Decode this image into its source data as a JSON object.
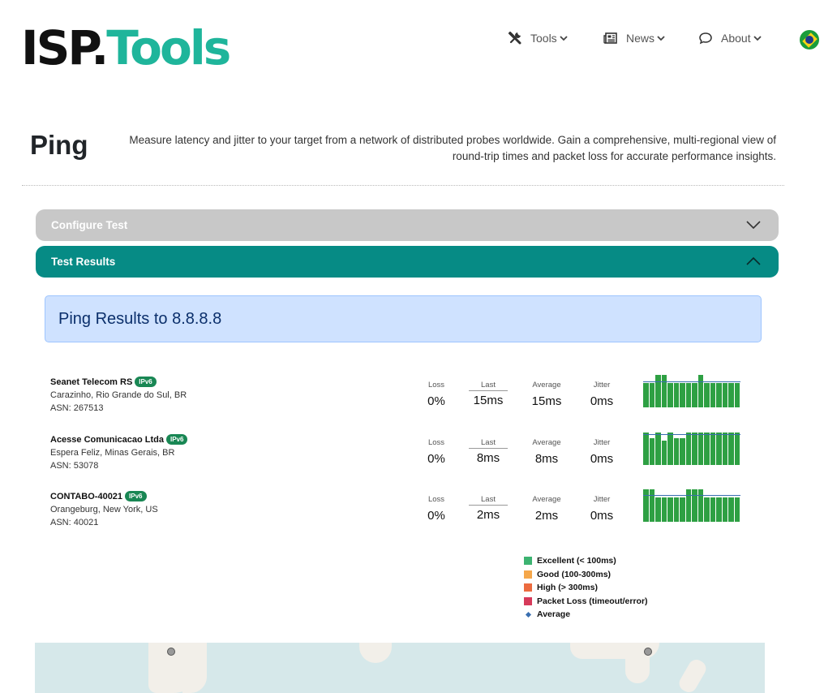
{
  "header": {
    "logo_isp": "ISP",
    "logo_dot": ".",
    "logo_tools": "Tools",
    "nav": [
      {
        "label": "Tools",
        "icon": "tools-icon"
      },
      {
        "label": "News",
        "icon": "newspaper-icon"
      },
      {
        "label": "About",
        "icon": "chat-bubble-icon"
      }
    ],
    "language_flag": "brazil-flag-icon"
  },
  "page": {
    "title": "Ping",
    "description": "Measure latency and jitter to your target from a network of distributed probes worldwide. Gain a comprehensive, multi-regional view of round-trip times and packet loss for accurate performance insights."
  },
  "accordions": {
    "configure_label": "Configure Test",
    "results_label": "Test Results"
  },
  "results": {
    "heading": "Ping Results to 8.8.8.8",
    "stat_labels": {
      "loss": "Loss",
      "last": "Last",
      "average": "Average",
      "jitter": "Jitter"
    },
    "probes": [
      {
        "name": "Seanet Telecom RS",
        "badge": "IPv6",
        "location": "Carazinho, Rio Grande do Sul, BR",
        "asn": "ASN: 267513",
        "loss": "0%",
        "last": "15ms",
        "average": "15ms",
        "jitter": "0ms",
        "samples_ms": [
          15,
          15,
          15.3,
          15.3,
          15,
          15,
          15,
          15,
          15,
          15.3,
          15,
          15,
          15,
          15,
          15,
          15
        ]
      },
      {
        "name": "Acesse Comunicacao Ltda",
        "badge": "IPv6",
        "location": "Espera Feliz, Minas Gerais, BR",
        "asn": "ASN: 53078",
        "loss": "0%",
        "last": "8ms",
        "average": "8ms",
        "jitter": "0ms",
        "samples_ms": [
          8,
          7.8,
          8,
          7.7,
          8,
          7.8,
          7.8,
          8,
          8,
          8,
          8,
          8,
          8,
          8,
          8,
          8
        ]
      },
      {
        "name": "CONTABO-40021",
        "badge": "IPv6",
        "location": "Orangeburg, New York, US",
        "asn": "ASN: 40021",
        "loss": "0%",
        "last": "2ms",
        "average": "2ms",
        "jitter": "0ms",
        "samples_ms": [
          2.4,
          2.4,
          1.9,
          1.9,
          1.9,
          1.9,
          1.9,
          2.4,
          2.4,
          2.4,
          1.9,
          1.9,
          1.9,
          1.9,
          1.9,
          1.9
        ]
      }
    ]
  },
  "legend": [
    {
      "label": "Excellent (< 100ms)",
      "color": "#3cb371"
    },
    {
      "label": "Good (100-300ms)",
      "color": "#f5a74a"
    },
    {
      "label": "High (> 300ms)",
      "color": "#ec6b3f"
    },
    {
      "label": "Packet Loss (timeout/error)",
      "color": "#d63a5a"
    },
    {
      "label": "Average",
      "color": "#3a6fb0"
    }
  ]
}
